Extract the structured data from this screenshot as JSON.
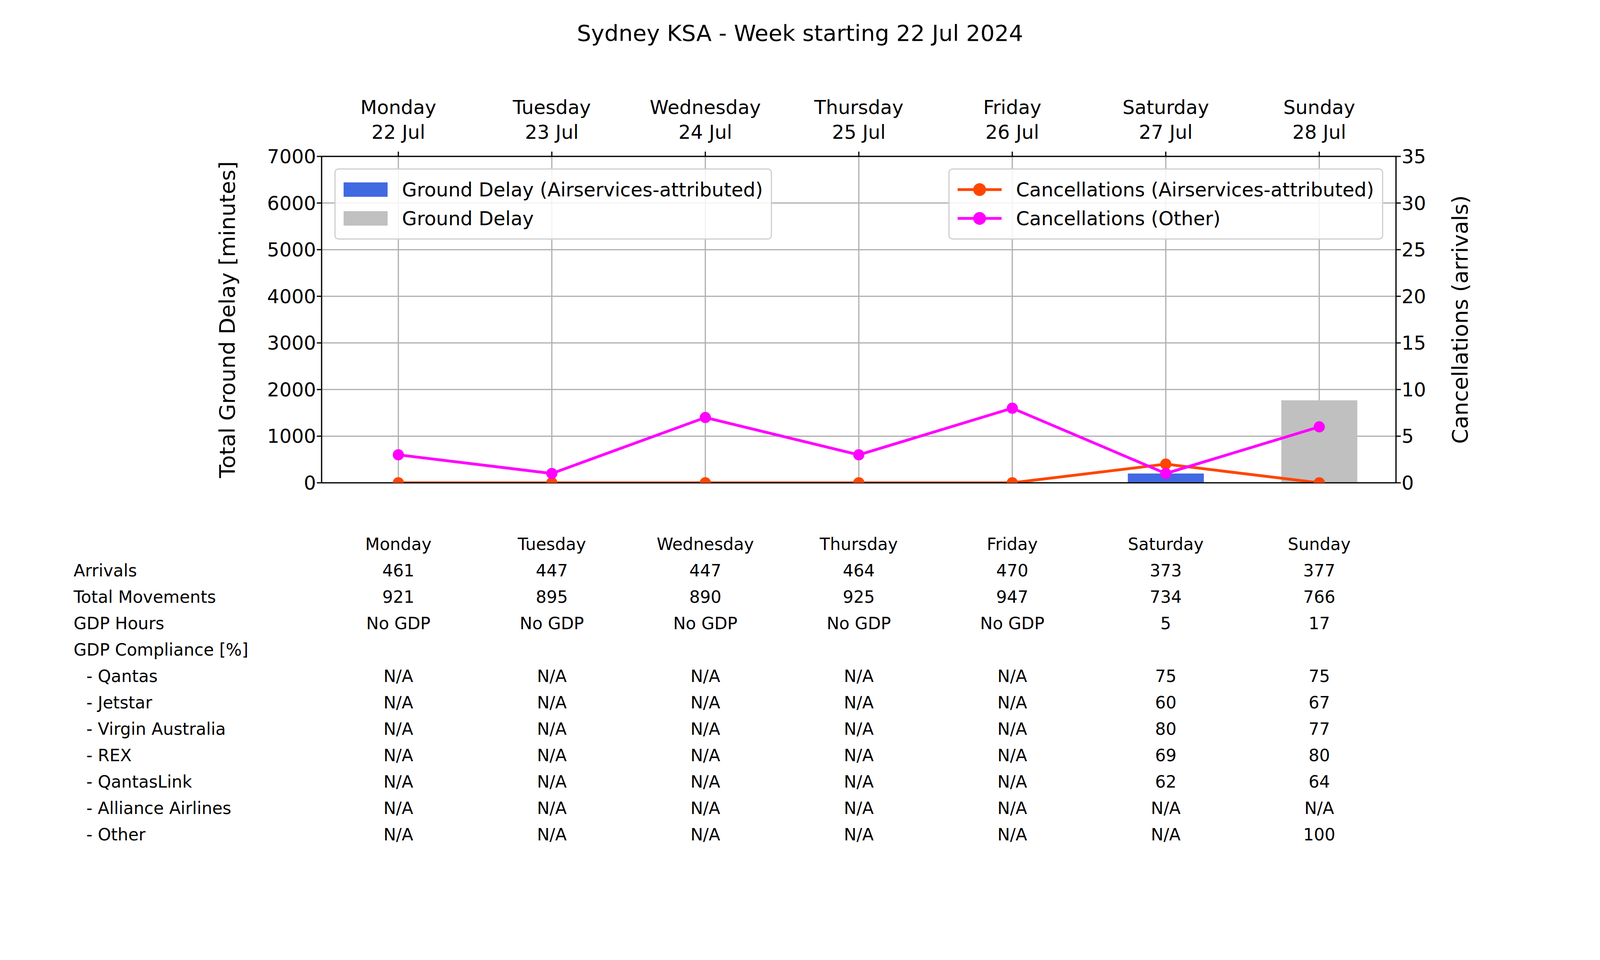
{
  "chart_data": {
    "type": "bar",
    "title": "Sydney KSA - Week starting 22 Jul 2024",
    "categories": [
      "Monday\n22 Jul",
      "Tuesday\n23 Jul",
      "Wednesday\n24 Jul",
      "Thursday\n25 Jul",
      "Friday\n26 Jul",
      "Saturday\n27 Jul",
      "Sunday\n28 Jul"
    ],
    "ylabel": "Total Ground Delay [minutes]",
    "y2label": "Cancellations (arrivals)",
    "series": [
      {
        "name": "Ground Delay (Airservices-attributed)",
        "type": "bar",
        "color": "#4169e1",
        "values": [
          0,
          0,
          0,
          0,
          0,
          200,
          0
        ]
      },
      {
        "name": "Ground Delay",
        "type": "bar",
        "color": "#c0c0c0",
        "values": [
          0,
          0,
          0,
          0,
          0,
          0,
          1770
        ]
      },
      {
        "name": "Cancellations (Airservices-attributed)",
        "type": "line",
        "color": "#ff4500",
        "marker": "circle",
        "axis": "y2",
        "values": [
          0,
          0,
          0,
          0,
          0,
          2,
          0
        ]
      },
      {
        "name": "Cancellations (Other)",
        "type": "line",
        "color": "#ff00ff",
        "marker": "circle",
        "axis": "y2",
        "values": [
          3,
          1,
          7,
          3,
          8,
          1,
          6
        ]
      }
    ],
    "ylim": [
      0,
      7000
    ],
    "yticks": [
      0,
      1000,
      2000,
      3000,
      4000,
      5000,
      6000,
      7000
    ],
    "y2lim": [
      0,
      35
    ],
    "y2ticks": [
      0,
      5,
      10,
      15,
      20,
      25,
      30,
      35
    ],
    "grid": true,
    "stacked": true,
    "legend": "upper left"
  },
  "table": {
    "columns": [
      "Monday",
      "Tuesday",
      "Wednesday",
      "Thursday",
      "Friday",
      "Saturday",
      "Sunday"
    ],
    "rows": [
      {
        "label": "Arrivals",
        "values": [
          461,
          447,
          447,
          464,
          470,
          373,
          377
        ]
      },
      {
        "label": "Total Movements",
        "values": [
          921,
          895,
          890,
          925,
          947,
          734,
          766
        ]
      },
      {
        "label": "GDP Hours",
        "values": [
          "No GDP",
          "No GDP",
          "No GDP",
          "No GDP",
          "No GDP",
          5,
          17
        ]
      },
      {
        "label": "GDP Compliance [%]",
        "values": []
      },
      {
        "label": "- Qantas",
        "values": [
          "N/A",
          "N/A",
          "N/A",
          "N/A",
          "N/A",
          75,
          75
        ]
      },
      {
        "label": "- Jetstar",
        "values": [
          "N/A",
          "N/A",
          "N/A",
          "N/A",
          "N/A",
          60,
          67
        ]
      },
      {
        "label": "- Virgin Australia",
        "values": [
          "N/A",
          "N/A",
          "N/A",
          "N/A",
          "N/A",
          80,
          77
        ]
      },
      {
        "label": "- REX",
        "values": [
          "N/A",
          "N/A",
          "N/A",
          "N/A",
          "N/A",
          69,
          80
        ]
      },
      {
        "label": "- QantasLink",
        "values": [
          "N/A",
          "N/A",
          "N/A",
          "N/A",
          "N/A",
          62,
          64
        ]
      },
      {
        "label": "- Alliance Airlines",
        "values": [
          "N/A",
          "N/A",
          "N/A",
          "N/A",
          "N/A",
          "N/A",
          "N/A"
        ]
      },
      {
        "label": "- Other",
        "values": [
          "N/A",
          "N/A",
          "N/A",
          "N/A",
          "N/A",
          "N/A",
          100
        ]
      }
    ]
  }
}
